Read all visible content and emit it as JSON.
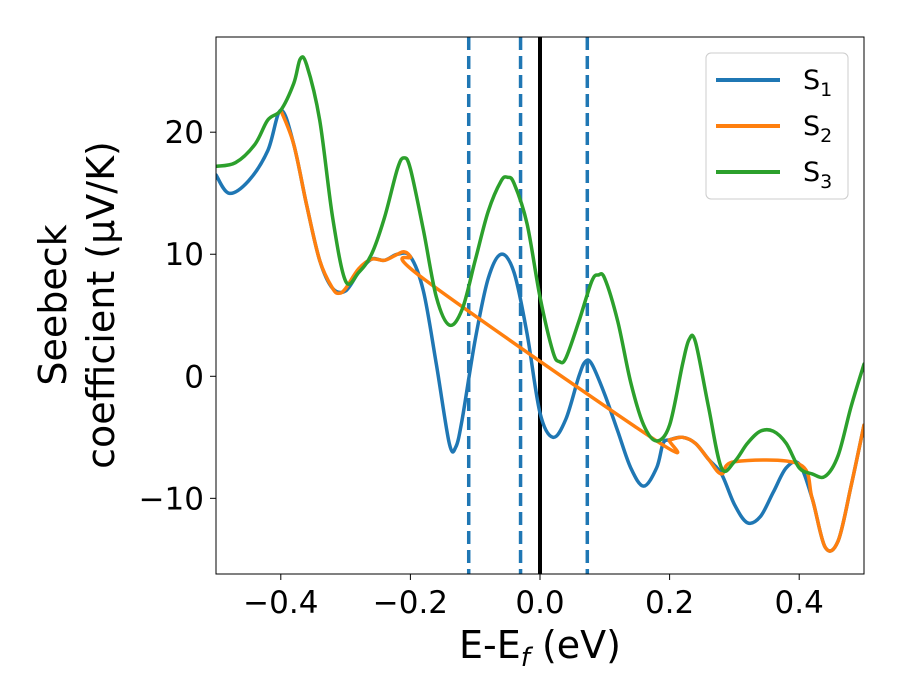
{
  "chart_data": {
    "type": "line",
    "xlabel": "E-E",
    "xlabel_sub": "f",
    "xlabel_unit": " (eV)",
    "ylabel_line1": "Seebeck",
    "ylabel_line2": "coefficient  (μV/K)",
    "xlim": [
      -0.5,
      0.5
    ],
    "ylim": [
      -16.2,
      27.8
    ],
    "x_ticks": [
      -0.4,
      -0.2,
      0.0,
      0.2,
      0.4
    ],
    "x_tick_labels": [
      "−0.4",
      "−0.2",
      "0.0",
      "0.2",
      "0.4"
    ],
    "y_ticks": [
      -10,
      0,
      10,
      20
    ],
    "y_tick_labels": [
      "−10",
      "0",
      "10",
      "20"
    ],
    "grid": false,
    "legend_position": "top-right",
    "vlines": [
      {
        "x": -0.11,
        "style": "dashed",
        "color": "#1f77b4"
      },
      {
        "x": -0.03,
        "style": "dashed",
        "color": "#1f77b4"
      },
      {
        "x": 0.0,
        "style": "solid",
        "color": "#000000"
      },
      {
        "x": 0.073,
        "style": "dashed",
        "color": "#1f77b4"
      }
    ],
    "series": [
      {
        "name": "S",
        "sub": "1",
        "color": "#1f77b4",
        "points": [
          [
            -0.5,
            16.5
          ],
          [
            -0.48,
            15.0
          ],
          [
            -0.45,
            16.0
          ],
          [
            -0.42,
            18.5
          ],
          [
            -0.4,
            21.8
          ],
          [
            -0.38,
            19.0
          ],
          [
            -0.36,
            14.0
          ],
          [
            -0.34,
            9.5
          ],
          [
            -0.32,
            7.2
          ],
          [
            -0.3,
            7.0
          ],
          [
            -0.28,
            8.5
          ],
          [
            -0.26,
            9.6
          ],
          [
            -0.24,
            9.5
          ],
          [
            -0.22,
            10.0
          ],
          [
            -0.2,
            9.8
          ],
          [
            -0.18,
            7.0
          ],
          [
            -0.16,
            1.0
          ],
          [
            -0.14,
            -5.5
          ],
          [
            -0.13,
            -5.8
          ],
          [
            -0.12,
            -3.5
          ],
          [
            -0.1,
            3.0
          ],
          [
            -0.08,
            8.0
          ],
          [
            -0.06,
            10.0
          ],
          [
            -0.04,
            8.5
          ],
          [
            -0.02,
            3.5
          ],
          [
            0.0,
            -3.0
          ],
          [
            0.02,
            -5.0
          ],
          [
            0.04,
            -3.5
          ],
          [
            0.06,
            0.0
          ],
          [
            0.07,
            1.2
          ],
          [
            0.08,
            1.0
          ],
          [
            0.1,
            -1.5
          ],
          [
            0.12,
            -4.5
          ],
          [
            0.14,
            -7.5
          ],
          [
            0.16,
            -9.0
          ],
          [
            0.18,
            -7.5
          ],
          [
            0.19,
            -5.5
          ],
          [
            0.2,
            -5.2
          ],
          [
            0.22,
            -5.0
          ],
          [
            0.24,
            -5.5
          ],
          [
            0.26,
            -6.8
          ],
          [
            0.28,
            -8.0
          ],
          [
            0.3,
            -10.5
          ],
          [
            0.32,
            -12.0
          ],
          [
            0.34,
            -11.5
          ],
          [
            0.36,
            -9.5
          ],
          [
            0.38,
            -7.5
          ],
          [
            0.4,
            -7.2
          ],
          [
            0.42,
            -10.0
          ],
          [
            0.44,
            -14.0
          ],
          [
            0.46,
            -13.5
          ],
          [
            0.48,
            -9.0
          ],
          [
            0.5,
            -4.0
          ]
        ]
      },
      {
        "name": "S",
        "sub": "2",
        "color": "#ff7f0e",
        "points": [
          [
            -0.4,
            21.8
          ],
          [
            -0.38,
            19.0
          ],
          [
            -0.36,
            14.0
          ],
          [
            -0.34,
            9.5
          ],
          [
            -0.32,
            7.2
          ],
          [
            -0.31,
            6.8
          ],
          [
            -0.3,
            7.2
          ],
          [
            -0.28,
            8.8
          ],
          [
            -0.26,
            9.6
          ],
          [
            -0.24,
            9.5
          ],
          [
            -0.22,
            10.0
          ],
          [
            -0.21,
            10.2
          ],
          [
            -0.2,
            9.8
          ],
          [
            -0.18,
            8.0
          ],
          [
            0.18,
            -5.3
          ],
          [
            0.2,
            -5.2
          ],
          [
            0.22,
            -5.0
          ],
          [
            0.24,
            -5.5
          ],
          [
            0.26,
            -6.8
          ],
          [
            0.28,
            -8.0
          ],
          [
            0.3,
            -7.0
          ],
          [
            0.4,
            -7.2
          ],
          [
            0.42,
            -10.0
          ],
          [
            0.44,
            -14.0
          ],
          [
            0.46,
            -13.5
          ],
          [
            0.48,
            -9.0
          ],
          [
            0.5,
            -4.0
          ]
        ]
      },
      {
        "name": "S",
        "sub": "3",
        "color": "#2ca02c",
        "points": [
          [
            -0.5,
            17.2
          ],
          [
            -0.47,
            17.5
          ],
          [
            -0.44,
            19.0
          ],
          [
            -0.42,
            21.0
          ],
          [
            -0.4,
            21.8
          ],
          [
            -0.38,
            24.0
          ],
          [
            -0.37,
            26.0
          ],
          [
            -0.36,
            25.5
          ],
          [
            -0.34,
            21.0
          ],
          [
            -0.32,
            13.0
          ],
          [
            -0.3,
            7.8
          ],
          [
            -0.28,
            8.5
          ],
          [
            -0.26,
            10.0
          ],
          [
            -0.24,
            13.0
          ],
          [
            -0.22,
            17.0
          ],
          [
            -0.21,
            17.9
          ],
          [
            -0.2,
            17.0
          ],
          [
            -0.18,
            12.0
          ],
          [
            -0.16,
            6.5
          ],
          [
            -0.14,
            4.2
          ],
          [
            -0.12,
            5.5
          ],
          [
            -0.1,
            9.5
          ],
          [
            -0.08,
            13.5
          ],
          [
            -0.06,
            16.0
          ],
          [
            -0.05,
            16.3
          ],
          [
            -0.04,
            15.8
          ],
          [
            -0.02,
            12.5
          ],
          [
            0.0,
            6.5
          ],
          [
            0.02,
            2.0
          ],
          [
            0.03,
            1.2
          ],
          [
            0.04,
            1.5
          ],
          [
            0.06,
            4.5
          ],
          [
            0.08,
            7.8
          ],
          [
            0.09,
            8.3
          ],
          [
            0.1,
            8.0
          ],
          [
            0.12,
            4.5
          ],
          [
            0.14,
            -0.5
          ],
          [
            0.16,
            -4.0
          ],
          [
            0.18,
            -5.3
          ],
          [
            0.2,
            -4.0
          ],
          [
            0.22,
            1.0
          ],
          [
            0.23,
            3.0
          ],
          [
            0.24,
            2.8
          ],
          [
            0.26,
            -2.5
          ],
          [
            0.28,
            -7.5
          ],
          [
            0.3,
            -7.0
          ],
          [
            0.32,
            -5.5
          ],
          [
            0.34,
            -4.5
          ],
          [
            0.36,
            -4.5
          ],
          [
            0.38,
            -5.5
          ],
          [
            0.4,
            -7.5
          ],
          [
            0.42,
            -8.0
          ],
          [
            0.44,
            -8.2
          ],
          [
            0.46,
            -6.5
          ],
          [
            0.48,
            -2.5
          ],
          [
            0.5,
            1.0
          ]
        ]
      }
    ]
  }
}
